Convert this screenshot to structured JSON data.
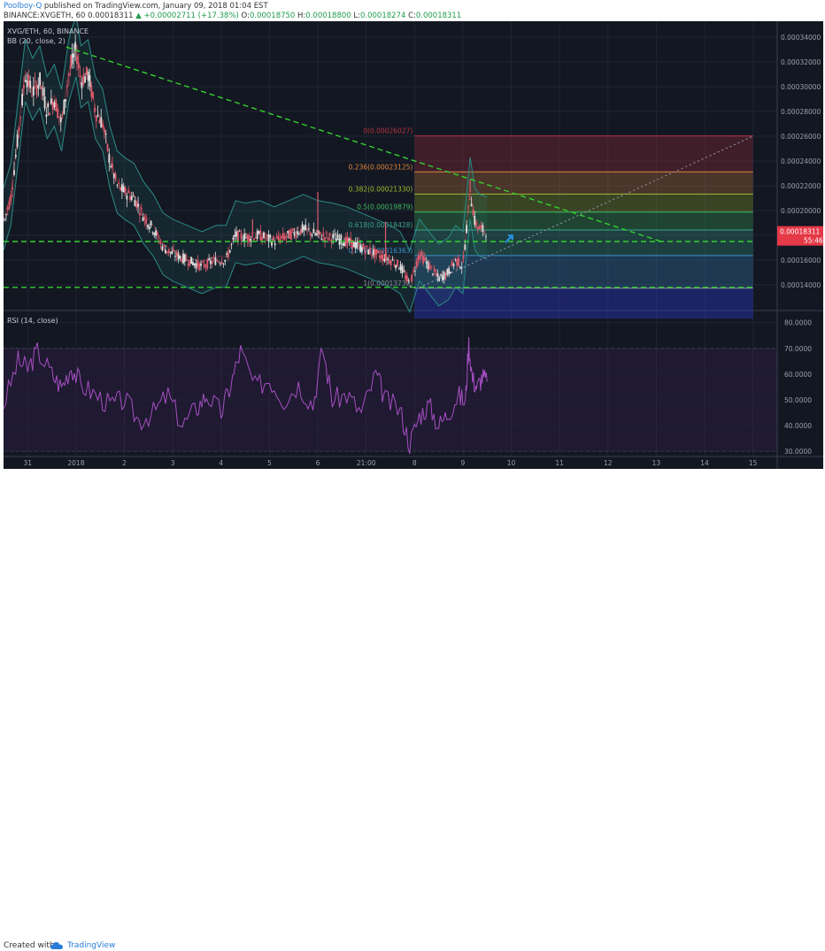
{
  "header": {
    "author": "Poolboy-Q",
    "published": "published on TradingView.com, January 09, 2018 01:04 EST",
    "symbol": "BINANCE:XVGETH, 60",
    "last": "0.00018311",
    "change": "+0.00002711 (+17.38%)",
    "o_label": "O:",
    "o_value": "0.00018750",
    "h_label": "H:",
    "h_value": "0.00018800",
    "l_label": "L:",
    "l_value": "0.00018274",
    "c_label": "C:",
    "c_value": "0.00018311"
  },
  "footer": {
    "created_with": "Created with",
    "brand": "TradingView"
  },
  "colors": {
    "background": "#131722",
    "up": "#e0e0e0",
    "down": "#e05a6d",
    "bb": "#2b8a86",
    "rsi": "#a64fc2",
    "trend": "#34d12f",
    "axis_text": "#9aa0aa",
    "price_tag": "#e53947"
  },
  "chart_data": [
    {
      "type": "candlestick",
      "title": "XVG/ETH, 60, BINANCE",
      "indicator": "BB (20, close, 2)",
      "ylim": [
        0.00012,
        0.00035
      ],
      "y_ticks": [
        "0.00034000",
        "0.00032000",
        "0.00030000",
        "0.00028000",
        "0.00026000",
        "0.00024000",
        "0.00022000",
        "0.00020000",
        "0.00018000",
        "0.00016000",
        "0.00014000"
      ],
      "y_tick_values": [
        0.00034,
        0.00032,
        0.0003,
        0.00028,
        0.00026,
        0.00024,
        0.00022,
        0.0002,
        0.00018,
        0.00016,
        0.00014
      ],
      "x_ticks": [
        "31",
        "2018",
        "2",
        "3",
        "4",
        "5",
        "6",
        "21:00",
        "8",
        "9",
        "10",
        "11",
        "12",
        "13",
        "14",
        "15"
      ],
      "x_tick_days": [
        -0.5,
        0.5,
        1.5,
        2.5,
        3.5,
        4.5,
        5.5,
        6.5,
        7.5,
        8.5,
        9.5,
        10.5,
        11.5,
        12.5,
        13.5,
        14.5
      ],
      "x_range_days": [
        -1.0,
        15.0
      ],
      "last_price_label": "0.00018311",
      "countdown": "55:46",
      "price_path": [
        [
          -1.0,
          0.00019
        ],
        [
          -0.85,
          0.00021
        ],
        [
          -0.7,
          0.00026
        ],
        [
          -0.55,
          0.00031
        ],
        [
          -0.4,
          0.000295
        ],
        [
          -0.25,
          0.000305
        ],
        [
          -0.1,
          0.00028
        ],
        [
          0.05,
          0.00029
        ],
        [
          0.2,
          0.00027
        ],
        [
          0.35,
          0.00031
        ],
        [
          0.5,
          0.00033
        ],
        [
          0.6,
          0.000305
        ],
        [
          0.75,
          0.00031
        ],
        [
          0.9,
          0.00028
        ],
        [
          1.05,
          0.00027
        ],
        [
          1.2,
          0.00024
        ],
        [
          1.35,
          0.00022
        ],
        [
          1.5,
          0.000215
        ],
        [
          1.7,
          0.00021
        ],
        [
          1.9,
          0.000195
        ],
        [
          2.1,
          0.000185
        ],
        [
          2.3,
          0.00017
        ],
        [
          2.5,
          0.000165
        ],
        [
          2.8,
          0.00016
        ],
        [
          3.1,
          0.000155
        ],
        [
          3.4,
          0.00016
        ],
        [
          3.6,
          0.00016
        ],
        [
          3.8,
          0.00018
        ],
        [
          4.0,
          0.000178
        ],
        [
          4.3,
          0.00018
        ],
        [
          4.6,
          0.000175
        ],
        [
          4.9,
          0.00018
        ],
        [
          5.2,
          0.000185
        ],
        [
          5.5,
          0.00018
        ],
        [
          5.8,
          0.000178
        ],
        [
          6.1,
          0.000175
        ],
        [
          6.4,
          0.00017
        ],
        [
          6.7,
          0.000165
        ],
        [
          7.0,
          0.00016
        ],
        [
          7.2,
          0.000155
        ],
        [
          7.4,
          0.00014
        ],
        [
          7.6,
          0.000165
        ],
        [
          7.8,
          0.000155
        ],
        [
          8.0,
          0.000145
        ],
        [
          8.2,
          0.00015
        ],
        [
          8.35,
          0.00016
        ],
        [
          8.5,
          0.000155
        ],
        [
          8.55,
          0.000175
        ],
        [
          8.65,
          0.000215
        ],
        [
          8.75,
          0.00019
        ],
        [
          8.85,
          0.000185
        ],
        [
          9.0,
          0.000183
        ]
      ],
      "spikes": [
        [
          0.4,
          0.000325
        ],
        [
          4.15,
          0.000193
        ],
        [
          5.5,
          0.000215
        ],
        [
          6.9,
          0.000191
        ],
        [
          8.65,
          0.000225
        ]
      ],
      "fib_levels": [
        {
          "ratio": "0",
          "price": "0.00026027",
          "value": 0.00026027,
          "color": "#b2333f"
        },
        {
          "ratio": "0.236",
          "price": "0.00023125",
          "value": 0.00023125,
          "color": "#e0863f"
        },
        {
          "ratio": "0.382",
          "price": "0.00021330",
          "value": 0.0002133,
          "color": "#9fbb2f"
        },
        {
          "ratio": "0.5",
          "price": "0.00019879",
          "value": 0.00019879,
          "color": "#3fbf5f"
        },
        {
          "ratio": "0.618",
          "price": "0.00018428",
          "value": 0.00018428,
          "color": "#3aa88b"
        },
        {
          "ratio": "0.786",
          "price": "0.00016363",
          "value": 0.00016363,
          "color": "#3d8fcf"
        },
        {
          "ratio": "1",
          "price": "0.00013730",
          "value": 0.0001373,
          "color": "#8d8d9a"
        }
      ],
      "fib_range_days": [
        7.5,
        14.5
      ],
      "trendlines": [
        {
          "style": "dashed",
          "color": "#34d12f",
          "from": [
            0.3,
            0.000332
          ],
          "to": [
            12.6,
            0.000175
          ]
        },
        {
          "style": "dashed",
          "color": "#34d12f",
          "from": [
            -1.0,
            0.000175
          ],
          "to": [
            14.5,
            0.000175
          ]
        },
        {
          "style": "dashed",
          "color": "#34d12f",
          "from": [
            -1.0,
            0.000138
          ],
          "to": [
            14.5,
            0.000138
          ]
        },
        {
          "style": "dotted",
          "color": "#9b9bab",
          "from": [
            7.6,
            0.000138
          ],
          "to": [
            14.5,
            0.00026
          ]
        }
      ]
    },
    {
      "type": "line",
      "title": "RSI (14, close)",
      "ylim": [
        28,
        84
      ],
      "y_ticks": [
        "80.0000",
        "70.0000",
        "60.0000",
        "50.0000",
        "40.0000",
        "30.0000"
      ],
      "y_tick_values": [
        80,
        70,
        60,
        50,
        40,
        30
      ],
      "bands": [
        70,
        30
      ],
      "x": [
        -1.0,
        -0.7,
        -0.5,
        -0.3,
        0.0,
        0.2,
        0.4,
        0.6,
        0.9,
        1.2,
        1.5,
        1.8,
        2.1,
        2.4,
        2.7,
        3.0,
        3.2,
        3.5,
        3.7,
        3.9,
        4.2,
        4.5,
        4.8,
        5.1,
        5.4,
        5.6,
        5.8,
        6.1,
        6.4,
        6.7,
        6.9,
        7.2,
        7.4,
        7.6,
        7.8,
        8.0,
        8.2,
        8.4,
        8.55,
        8.62,
        8.7,
        8.8,
        8.9,
        9.0
      ],
      "values": [
        48,
        65,
        62,
        69,
        60,
        55,
        63,
        56,
        52,
        48,
        50,
        42,
        45,
        52,
        40,
        47,
        52,
        45,
        56,
        69,
        55,
        58,
        50,
        56,
        48,
        70,
        50,
        52,
        45,
        60,
        50,
        46,
        33,
        44,
        48,
        40,
        45,
        52,
        49,
        72,
        58,
        55,
        59,
        57
      ]
    }
  ]
}
